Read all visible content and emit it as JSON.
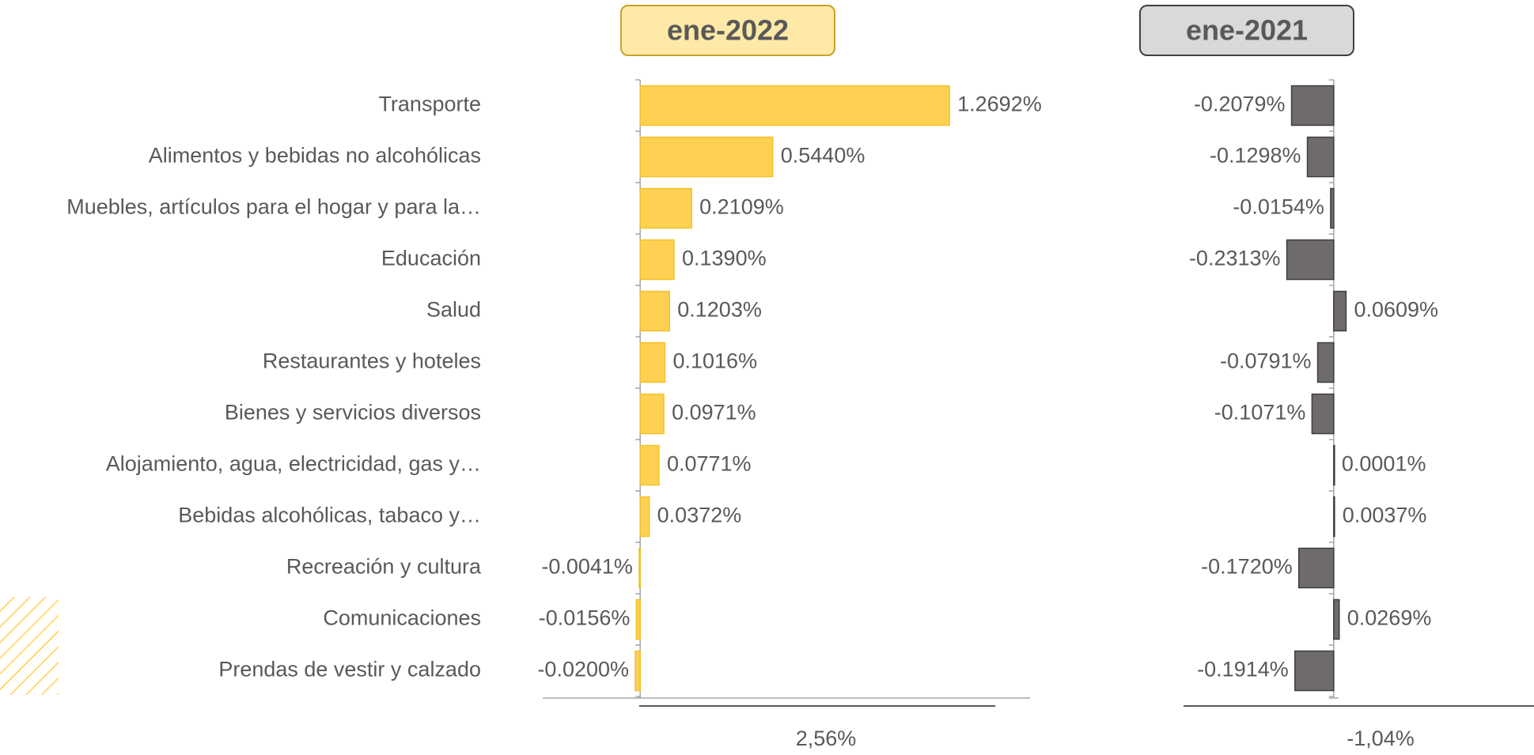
{
  "chart_data": {
    "type": "hbar",
    "categories": [
      "Transporte",
      "Alimentos y bebidas no alcohólicas",
      "Muebles, artículos para el hogar y para la…",
      "Educación",
      "Salud",
      "Restaurantes y hoteles",
      "Bienes y servicios diversos",
      "Alojamiento, agua, electricidad, gas y…",
      "Bebidas alcohólicas, tabaco y…",
      "Recreación y cultura",
      "Comunicaciones",
      "Prendas de vestir y calzado"
    ],
    "series": [
      {
        "name": "ene-2022",
        "color": "#FFD152",
        "edge": "#F2C12E",
        "values": [
          1.2692,
          0.544,
          0.2109,
          0.139,
          0.1203,
          0.1016,
          0.0971,
          0.0771,
          0.0372,
          -0.0041,
          -0.0156,
          -0.02
        ],
        "value_labels": [
          "1.2692%",
          "0.5440%",
          "0.2109%",
          "0.1390%",
          "0.1203%",
          "0.1016%",
          "0.0971%",
          "0.0771%",
          "0.0372%",
          "-0.0041%",
          "-0.0156%",
          "-0.0200%"
        ],
        "xlim": [
          -0.4,
          1.6
        ],
        "total": "2,56%"
      },
      {
        "name": "ene-2021",
        "color": "#6F6B6B",
        "edge": "#3F3F3F",
        "values": [
          -0.2079,
          -0.1298,
          -0.0154,
          -0.2313,
          0.0609,
          -0.0791,
          -0.1071,
          0.0001,
          0.0037,
          -0.172,
          0.0269,
          -0.1914
        ],
        "value_labels": [
          "-0.2079%",
          "-0.1298%",
          "-0.0154%",
          "-0.2313%",
          "0.0609%",
          "-0.0791%",
          "-0.1071%",
          "0.0001%",
          "0.0037%",
          "-0.1720%",
          "0.0269%",
          "-0.1914%"
        ],
        "xlim": [
          -0.6,
          0.8
        ],
        "total": "-1,04%"
      }
    ]
  }
}
